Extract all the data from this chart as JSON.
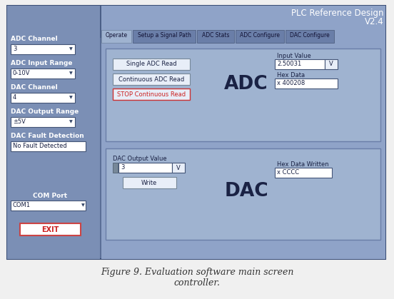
{
  "bg_color": "#f0f0f0",
  "outer_bg": "#5a6e96",
  "header_bg": "#4a5e86",
  "sidebar_bg": "#7b8fb5",
  "main_panel_bg": "#8fa3c8",
  "inner_panel_bg": "#9fb3d0",
  "tab_active_bg": "#9fb3d0",
  "tab_inactive_bg": "#6a7ea8",
  "button_bg": "#e8eef8",
  "button_stop_bg": "#e8eef8",
  "button_stop_color": "#cc2222",
  "title_text": "PLC Reference Design\n                   V2.4",
  "title_color": "#ffffff",
  "caption_line1": "Figure 9. Evaluation software main screen",
  "caption_line2": "controller.",
  "caption_color": "#333333",
  "tabs": [
    "Operate",
    "Setup a Signal Path",
    "ADC Stats",
    "ADC Configure",
    "DAC Configure"
  ],
  "tab_widths": [
    42,
    88,
    52,
    68,
    68
  ],
  "sidebar_labels": [
    "ADC Channel",
    "ADC Input Range",
    "DAC Channel",
    "DAC Output Range",
    "DAC Fault Detection"
  ],
  "sidebar_values": [
    "3",
    "0-10V",
    "4",
    "±5V",
    "No Fault Detected"
  ],
  "com_label": "COM Port",
  "com_value": "COM1",
  "adc_label": "ADC",
  "dac_label": "DAC",
  "btn1": "Single ADC Read",
  "btn2": "Continuous ADC Read",
  "btn3": "STOP Continuous Read",
  "input_value_label": "Input Value",
  "input_value": "2.50031",
  "input_unit": "V",
  "hex_data_label": "Hex Data",
  "hex_data_value": "x 400208",
  "dac_output_label": "DAC Output Value",
  "dac_output_value": "3",
  "dac_output_unit": "V",
  "write_btn": "Write",
  "hex_written_label": "Hex Data Written",
  "hex_written_value": "x CCCC",
  "exit_btn": "EXIT",
  "exit_btn_color": "#cc2222",
  "white_field": "#ffffff",
  "field_ec": "#445577",
  "label_color": "#ffffff",
  "dark_text": "#1a2244"
}
